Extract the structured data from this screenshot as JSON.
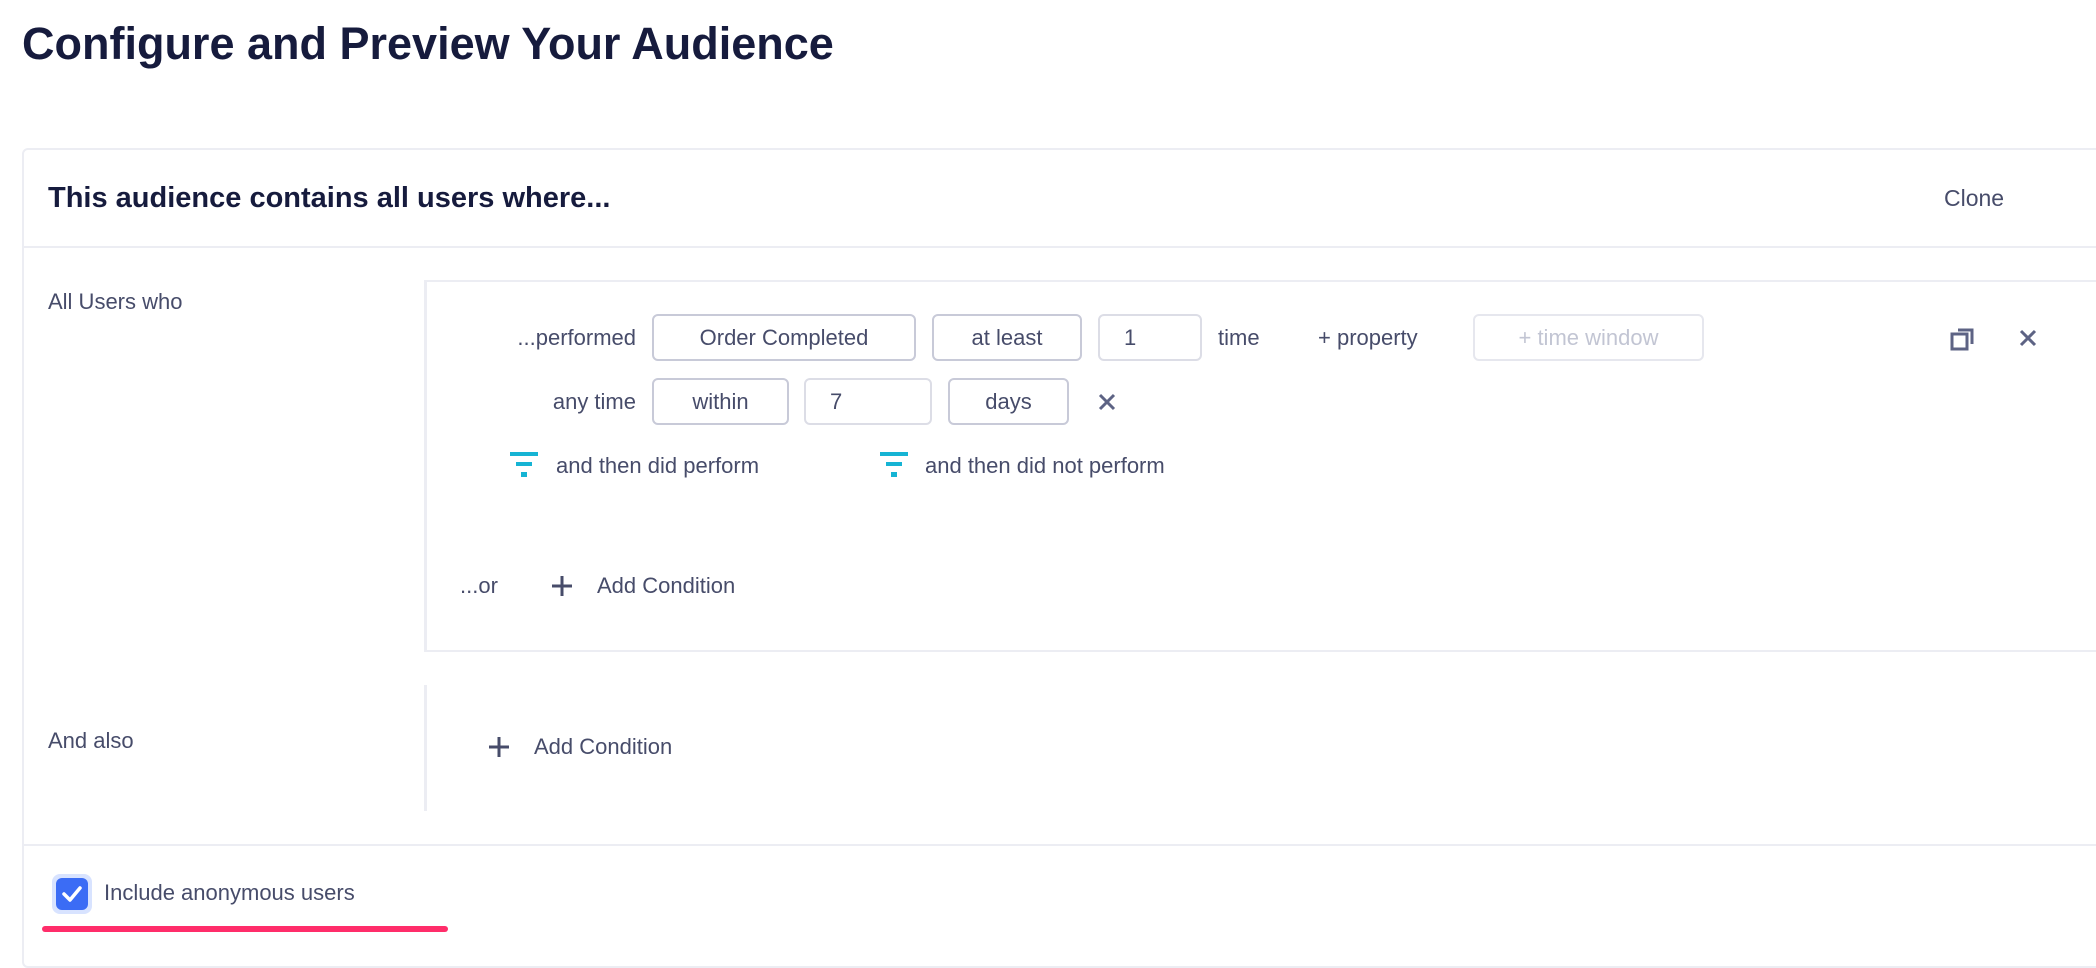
{
  "page_title": "Configure and Preview Your Audience",
  "card": {
    "heading": "This audience contains all users where...",
    "clone_label": "Clone"
  },
  "section1": {
    "label": "All Users who",
    "row1": {
      "prefix": "...performed",
      "event": "Order Completed",
      "operator": "at least",
      "count": "1",
      "unit": "time",
      "add_property": "+ property",
      "add_time_window": "+ time window",
      "icons": [
        "copy-icon",
        "close-icon"
      ]
    },
    "row2": {
      "prefix": "any time",
      "range": "within",
      "amount": "7",
      "period": "days",
      "remove_icon": "close-icon"
    },
    "then_did": "and then did perform",
    "then_did_not": "and then did not perform",
    "or_label": "...or",
    "add_condition": "Add Condition"
  },
  "section2": {
    "label": "And also",
    "add_condition": "Add Condition"
  },
  "footer": {
    "include_anonymous_label": "Include anonymous users",
    "include_anonymous_checked": true
  },
  "colors": {
    "accent": "#3b6cf5",
    "funnel": "#16b4d4",
    "highlight": "#ff2d6a",
    "title": "#161b3d"
  }
}
